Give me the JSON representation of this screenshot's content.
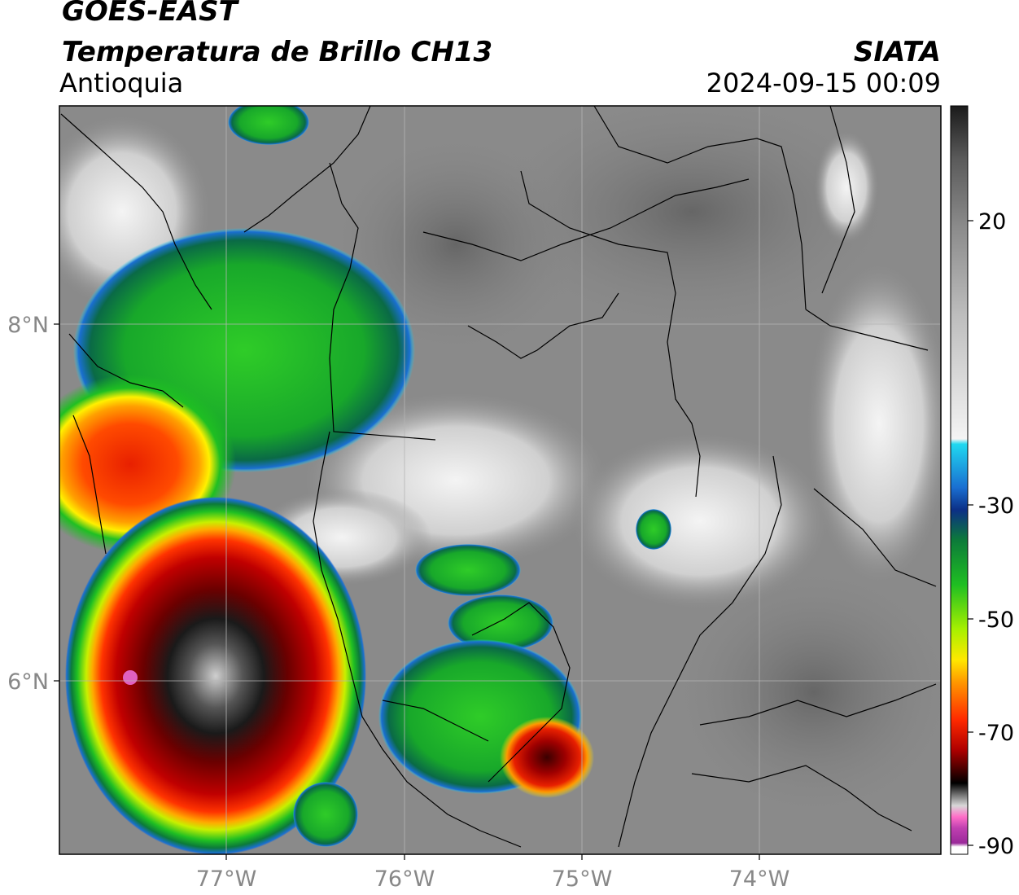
{
  "header": {
    "satellite": "GOES-EAST",
    "product": "Temperatura de Brillo CH13",
    "region": "Antioquia",
    "organization": "SIATA",
    "timestamp": "2024-09-15 00:09"
  },
  "map": {
    "lat_ticks": [
      "8°N",
      "6°N"
    ],
    "lon_ticks": [
      "77°W",
      "76°W",
      "75°W",
      "74°W"
    ],
    "background_color": "#8a8a8a",
    "border_color": "#000000",
    "gridlines": true
  },
  "colorbar": {
    "ticks": [
      "20",
      "-30",
      "-50",
      "-70",
      "-90"
    ],
    "stops": [
      {
        "color": "#1a1a1a"
      },
      {
        "color": "#5a5a5a"
      },
      {
        "color": "#8a8a8a"
      },
      {
        "color": "#bdbdbd"
      },
      {
        "color": "#f4f4f4"
      },
      {
        "color": "#20d8f0"
      },
      {
        "color": "#1a6fd1"
      },
      {
        "color": "#0c2f86"
      },
      {
        "color": "#0c7a3a"
      },
      {
        "color": "#1fbf22"
      },
      {
        "color": "#a8f000"
      },
      {
        "color": "#ffe800"
      },
      {
        "color": "#ff9800"
      },
      {
        "color": "#ff2a00"
      },
      {
        "color": "#b00000"
      },
      {
        "color": "#3a0000"
      },
      {
        "color": "#000000"
      },
      {
        "color": "#6e6e6e"
      },
      {
        "color": "#d8d8d8"
      },
      {
        "color": "#ff6ec8"
      },
      {
        "color": "#c040b0"
      },
      {
        "color": "#9a2a9a"
      },
      {
        "color": "#ffffff"
      }
    ]
  }
}
